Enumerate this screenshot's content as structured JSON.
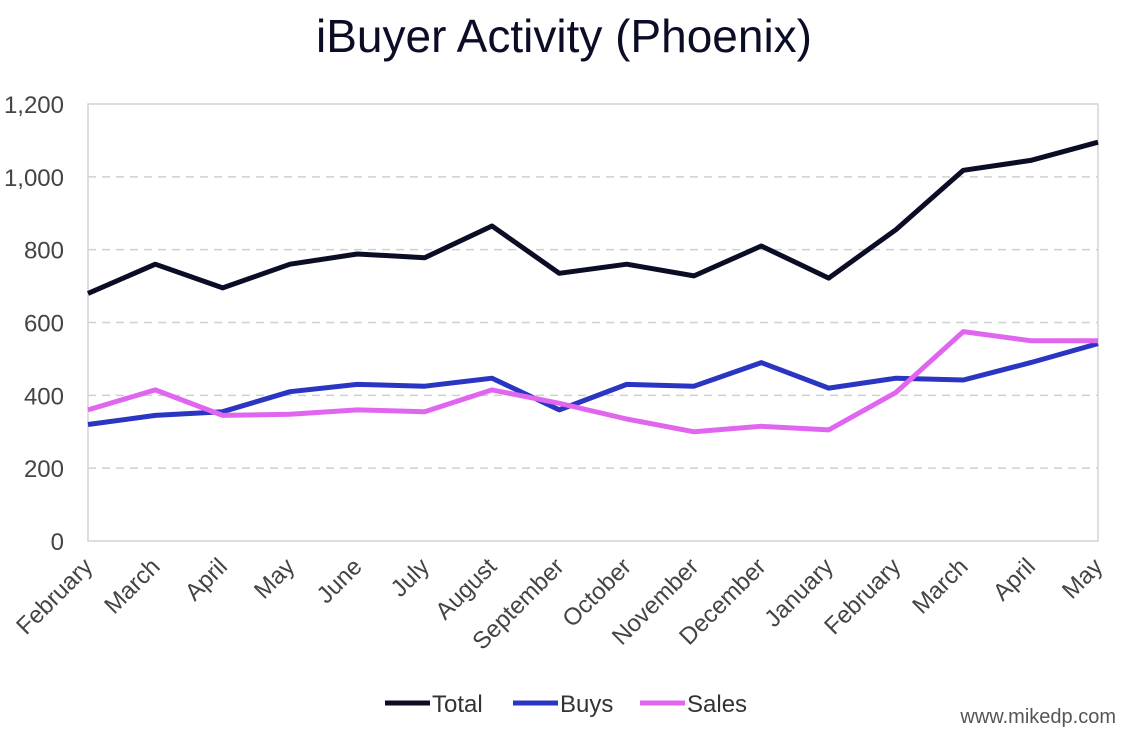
{
  "chart_data": {
    "type": "line",
    "title": "iBuyer Activity (Phoenix)",
    "xlabel": "",
    "ylabel": "",
    "ylim": [
      0,
      1200
    ],
    "yticks": [
      0,
      200,
      400,
      600,
      800,
      1000,
      1200
    ],
    "ytick_labels": [
      "0",
      "200",
      "400",
      "600",
      "800",
      "1,000",
      "1,200"
    ],
    "categories": [
      "February",
      "March",
      "April",
      "May",
      "June",
      "July",
      "August",
      "September",
      "October",
      "November",
      "December",
      "January",
      "February",
      "March",
      "April",
      "May"
    ],
    "series": [
      {
        "name": "Total",
        "color": "#0b0c25",
        "values": [
          680,
          760,
          695,
          760,
          788,
          778,
          865,
          735,
          760,
          728,
          810,
          722,
          855,
          1018,
          1045,
          1095
        ]
      },
      {
        "name": "Buys",
        "color": "#2a35c2",
        "values": [
          320,
          345,
          355,
          410,
          430,
          425,
          447,
          360,
          430,
          425,
          490,
          420,
          447,
          442,
          490,
          542
        ]
      },
      {
        "name": "Sales",
        "color": "#e066f0",
        "values": [
          360,
          415,
          345,
          348,
          360,
          355,
          415,
          378,
          335,
          300,
          315,
          305,
          408,
          575,
          550,
          550
        ]
      }
    ],
    "grid": true,
    "legend": "bottom-center"
  },
  "watermark": "www.mikedp.com"
}
